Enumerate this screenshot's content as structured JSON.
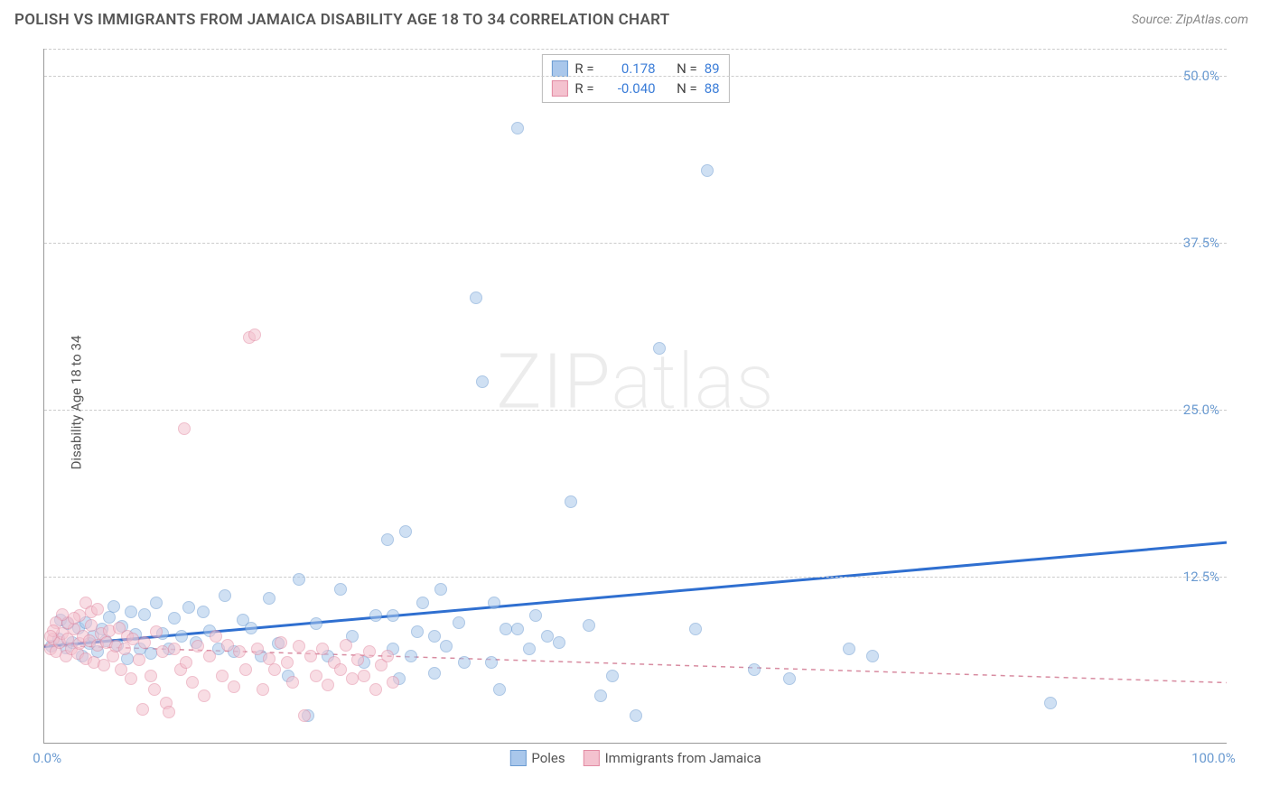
{
  "title": "POLISH VS IMMIGRANTS FROM JAMAICA DISABILITY AGE 18 TO 34 CORRELATION CHART",
  "source": "Source: ZipAtlas.com",
  "watermark": "ZIPatlas",
  "chart": {
    "type": "scatter",
    "ylabel": "Disability Age 18 to 34",
    "xlim": [
      0,
      100
    ],
    "ylim": [
      0,
      52
    ],
    "yticks": [
      {
        "value": 12.5,
        "label": "12.5%"
      },
      {
        "value": 25.0,
        "label": "25.0%"
      },
      {
        "value": 37.5,
        "label": "37.5%"
      },
      {
        "value": 50.0,
        "label": "50.0%"
      }
    ],
    "xticks": [
      {
        "value": 0,
        "label": "0.0%",
        "class": "xtick-left"
      },
      {
        "value": 100,
        "label": "100.0%",
        "class": "xtick-right"
      }
    ],
    "background_color": "#ffffff",
    "grid_color": "#cccccc",
    "axis_color": "#999999",
    "tick_label_color": "#6b9bd1",
    "marker_radius": 7,
    "marker_stroke_width": 1.5,
    "series": [
      {
        "name": "Poles",
        "fill": "#a9c7eb",
        "fill_opacity": 0.55,
        "stroke": "#6b9bd1",
        "R": "0.178",
        "N": "89",
        "trend": {
          "x1": 0,
          "y1": 7.2,
          "x2": 100,
          "y2": 15.0,
          "stroke": "#2f6fd0",
          "width": 3,
          "dash": "none"
        },
        "points": [
          [
            0.6,
            7.2
          ],
          [
            1.2,
            7.8
          ],
          [
            1.4,
            9.2
          ],
          [
            1.8,
            7.1
          ],
          [
            2.0,
            8.9
          ],
          [
            2.4,
            7.5
          ],
          [
            2.9,
            8.6
          ],
          [
            3.2,
            6.5
          ],
          [
            3.5,
            9.0
          ],
          [
            3.8,
            7.4
          ],
          [
            4.1,
            8.0
          ],
          [
            4.5,
            6.8
          ],
          [
            4.9,
            8.5
          ],
          [
            5.2,
            7.6
          ],
          [
            5.5,
            9.4
          ],
          [
            5.9,
            10.2
          ],
          [
            6.2,
            7.3
          ],
          [
            6.6,
            8.7
          ],
          [
            7.0,
            6.3
          ],
          [
            7.3,
            9.8
          ],
          [
            7.7,
            8.1
          ],
          [
            8.1,
            7.0
          ],
          [
            8.5,
            9.6
          ],
          [
            9.0,
            6.7
          ],
          [
            9.5,
            10.5
          ],
          [
            10.0,
            8.2
          ],
          [
            10.5,
            7.0
          ],
          [
            11.0,
            9.3
          ],
          [
            11.6,
            8.0
          ],
          [
            12.2,
            10.1
          ],
          [
            12.8,
            7.5
          ],
          [
            13.4,
            9.8
          ],
          [
            14.0,
            8.4
          ],
          [
            14.7,
            7.0
          ],
          [
            15.3,
            11.0
          ],
          [
            16.0,
            6.8
          ],
          [
            16.8,
            9.2
          ],
          [
            17.5,
            8.6
          ],
          [
            18.3,
            6.5
          ],
          [
            19.0,
            10.8
          ],
          [
            19.8,
            7.4
          ],
          [
            20.6,
            5.0
          ],
          [
            21.5,
            12.2
          ],
          [
            22.3,
            2.0
          ],
          [
            23.0,
            8.9
          ],
          [
            24.0,
            6.5
          ],
          [
            25.0,
            11.5
          ],
          [
            26.0,
            8.0
          ],
          [
            27.0,
            6.0
          ],
          [
            28.0,
            9.5
          ],
          [
            29.0,
            15.2
          ],
          [
            29.5,
            7.0
          ],
          [
            30.0,
            4.8
          ],
          [
            30.5,
            15.8
          ],
          [
            31.5,
            8.3
          ],
          [
            32.0,
            10.5
          ],
          [
            33.0,
            5.2
          ],
          [
            33.5,
            11.5
          ],
          [
            34.0,
            7.2
          ],
          [
            35.0,
            9.0
          ],
          [
            36.5,
            33.3
          ],
          [
            37.0,
            27.0
          ],
          [
            37.8,
            6.0
          ],
          [
            38.5,
            4.0
          ],
          [
            39.0,
            8.5
          ],
          [
            40.0,
            46.0
          ],
          [
            41.0,
            7.0
          ],
          [
            41.5,
            9.5
          ],
          [
            42.5,
            8.0
          ],
          [
            43.5,
            7.5
          ],
          [
            44.5,
            18.0
          ],
          [
            46.0,
            8.8
          ],
          [
            47.0,
            3.5
          ],
          [
            48.0,
            5.0
          ],
          [
            50.0,
            2.0
          ],
          [
            52.0,
            29.5
          ],
          [
            55.0,
            8.5
          ],
          [
            56.0,
            42.8
          ],
          [
            60.0,
            5.5
          ],
          [
            63.0,
            4.8
          ],
          [
            68.0,
            7.0
          ],
          [
            70.0,
            6.5
          ],
          [
            85.0,
            3.0
          ],
          [
            40.0,
            8.5
          ],
          [
            38.0,
            10.5
          ],
          [
            35.5,
            6.0
          ],
          [
            33.0,
            8.0
          ],
          [
            31.0,
            6.5
          ],
          [
            29.5,
            9.5
          ]
        ]
      },
      {
        "name": "Immigrants from Jamaica",
        "fill": "#f4c2cf",
        "fill_opacity": 0.55,
        "stroke": "#e28ba3",
        "R": "-0.040",
        "N": "88",
        "trend": {
          "x1": 0,
          "y1": 7.3,
          "x2": 100,
          "y2": 4.5,
          "stroke": "#d88ca1",
          "width": 1.5,
          "dash": "5,5"
        },
        "points": [
          [
            0.5,
            7.0
          ],
          [
            0.8,
            7.8
          ],
          [
            1.0,
            6.8
          ],
          [
            1.3,
            7.5
          ],
          [
            1.5,
            8.2
          ],
          [
            1.8,
            6.5
          ],
          [
            2.0,
            7.8
          ],
          [
            2.3,
            7.0
          ],
          [
            2.5,
            8.5
          ],
          [
            2.8,
            6.7
          ],
          [
            3.0,
            7.4
          ],
          [
            3.3,
            8.0
          ],
          [
            3.5,
            6.3
          ],
          [
            3.8,
            7.6
          ],
          [
            4.0,
            8.8
          ],
          [
            4.2,
            6.0
          ],
          [
            4.5,
            7.3
          ],
          [
            4.8,
            8.2
          ],
          [
            5.0,
            5.8
          ],
          [
            5.3,
            7.5
          ],
          [
            5.5,
            8.4
          ],
          [
            5.8,
            6.5
          ],
          [
            6.0,
            7.2
          ],
          [
            6.3,
            8.6
          ],
          [
            6.5,
            5.5
          ],
          [
            6.8,
            7.0
          ],
          [
            7.0,
            8.0
          ],
          [
            7.3,
            4.8
          ],
          [
            7.5,
            7.8
          ],
          [
            8.0,
            6.2
          ],
          [
            8.3,
            2.5
          ],
          [
            8.5,
            7.5
          ],
          [
            9.0,
            5.0
          ],
          [
            9.3,
            4.0
          ],
          [
            9.5,
            8.3
          ],
          [
            10.0,
            6.8
          ],
          [
            10.3,
            3.0
          ],
          [
            10.5,
            2.3
          ],
          [
            11.0,
            7.0
          ],
          [
            11.5,
            5.5
          ],
          [
            11.8,
            23.5
          ],
          [
            12.0,
            6.0
          ],
          [
            12.5,
            4.5
          ],
          [
            13.0,
            7.2
          ],
          [
            13.5,
            3.5
          ],
          [
            14.0,
            6.5
          ],
          [
            14.5,
            8.0
          ],
          [
            15.0,
            5.0
          ],
          [
            15.5,
            7.3
          ],
          [
            16.0,
            4.2
          ],
          [
            16.5,
            6.8
          ],
          [
            17.0,
            5.5
          ],
          [
            17.3,
            30.3
          ],
          [
            17.8,
            30.5
          ],
          [
            18.0,
            7.0
          ],
          [
            18.5,
            4.0
          ],
          [
            19.0,
            6.3
          ],
          [
            19.5,
            5.5
          ],
          [
            20.0,
            7.5
          ],
          [
            20.5,
            6.0
          ],
          [
            21.0,
            4.5
          ],
          [
            21.5,
            7.2
          ],
          [
            22.0,
            2.0
          ],
          [
            22.5,
            6.5
          ],
          [
            23.0,
            5.0
          ],
          [
            23.5,
            7.0
          ],
          [
            24.0,
            4.3
          ],
          [
            24.5,
            6.0
          ],
          [
            25.0,
            5.5
          ],
          [
            25.5,
            7.3
          ],
          [
            26.0,
            4.8
          ],
          [
            26.5,
            6.2
          ],
          [
            27.0,
            5.0
          ],
          [
            27.5,
            6.8
          ],
          [
            28.0,
            4.0
          ],
          [
            28.5,
            5.8
          ],
          [
            29.0,
            6.5
          ],
          [
            29.5,
            4.5
          ],
          [
            3.0,
            9.5
          ],
          [
            3.5,
            10.5
          ],
          [
            4.0,
            9.8
          ],
          [
            4.5,
            10.0
          ],
          [
            2.0,
            9.0
          ],
          [
            2.5,
            9.3
          ],
          [
            1.5,
            9.6
          ],
          [
            1.0,
            9.0
          ],
          [
            0.8,
            8.4
          ],
          [
            0.5,
            8.0
          ]
        ]
      }
    ],
    "stats_legend": {
      "r_label": "R =",
      "n_label": "N ="
    },
    "bottom_legend": {
      "items": [
        {
          "label": "Poles",
          "fill": "#a9c7eb",
          "stroke": "#6b9bd1"
        },
        {
          "label": "Immigrants from Jamaica",
          "fill": "#f4c2cf",
          "stroke": "#e28ba3"
        }
      ]
    },
    "title_fontsize": 17,
    "label_fontsize": 15
  }
}
